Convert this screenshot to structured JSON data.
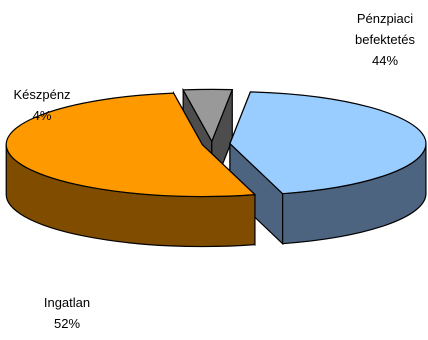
{
  "chart_data": {
    "type": "pie",
    "variant": "3d-exploded",
    "title": "",
    "slices": [
      {
        "label_lines": [
          "Pénzpiaci",
          "befektetés"
        ],
        "value": 44,
        "percent_label": "44%",
        "color": "#99ccff"
      },
      {
        "label_lines": [
          "Ingatlan"
        ],
        "value": 52,
        "percent_label": "52%",
        "color": "#ff9900"
      },
      {
        "label_lines": [
          "Készpénz"
        ],
        "value": 4,
        "percent_label": "4%",
        "color": "#999999"
      }
    ],
    "legend": "none",
    "grid": false
  }
}
